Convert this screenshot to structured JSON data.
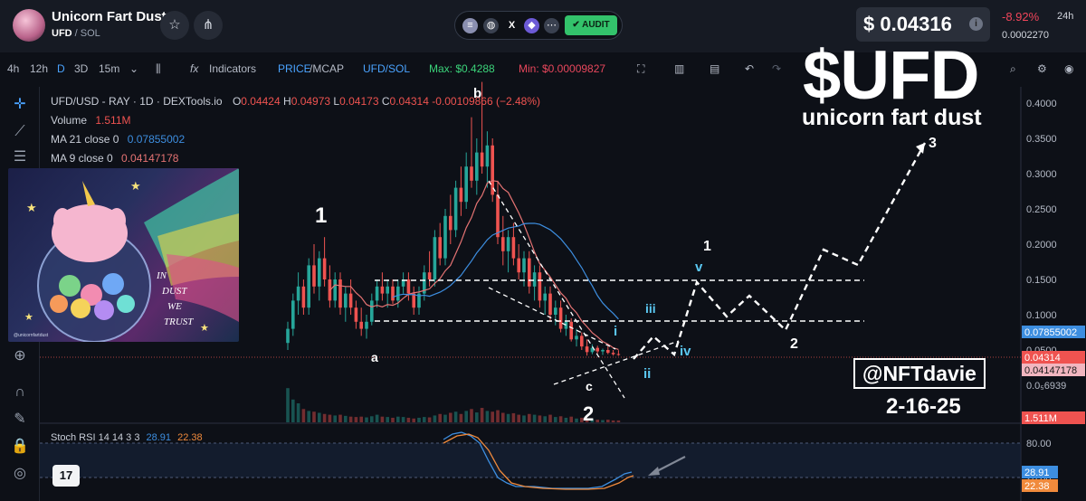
{
  "header": {
    "coin_name": "Unicorn Fart Dust",
    "coin_symbol": "UFD",
    "coin_quote": "/ SOL",
    "star_icon": "star-icon",
    "share_icon": "share-icon",
    "audit_label": "AUDIT",
    "price": "$ 0.04316",
    "change": "-8.92%",
    "change_period": "24h",
    "price_sol": "0.0002270"
  },
  "toolbar": {
    "timeframes": [
      "4h",
      "12h",
      "D",
      "3D",
      "15m"
    ],
    "active_timeframe": "D",
    "indicators_label": "Indicators",
    "price_label": "PRICE",
    "mcap_label": "/MCAP",
    "pair_label": "UFD/SOL",
    "max_label": "Max: $0.4288",
    "min_label": "Min: $0.00009827"
  },
  "legend": {
    "title": "UFD/USD - RAY · 1D · DEXTools.io",
    "o": "0.04424",
    "h": "0.04973",
    "l": "0.04173",
    "c": "0.04314",
    "chg": "-0.00109866 (−2.48%)",
    "volume_label": "Volume",
    "volume_value": "1.511M",
    "ma21_label": "MA 21 close 0",
    "ma21_value": "0.07855002",
    "ma9_label": "MA 9 close 0",
    "ma9_value": "0.04147178"
  },
  "rsi_legend": {
    "label": "Stoch RSI 14 14 3 3",
    "k": "28.91",
    "d": "22.38"
  },
  "overlay": {
    "ticker": "$UFD",
    "subtitle": "unicorn fart dust",
    "handle": "@NFTdavie",
    "date": "2-16-25",
    "art_text": [
      "IN",
      "DUST",
      "WE",
      "TRUST"
    ],
    "art_credit": "@unicornfartdust"
  },
  "colors": {
    "up": "#26a69a",
    "down": "#ef5350",
    "ma21": "#3d8ee0",
    "ma9": "#e57373",
    "rsi_k": "#3d8ee0",
    "rsi_d": "#f08a3c",
    "accent": "#4aa3ff"
  },
  "chart_data": {
    "type": "candlestick",
    "pair": "UFD/USD",
    "price_axis_ticks": [
      "0.4000",
      "0.3500",
      "0.3000",
      "0.2500",
      "0.2000",
      "0.1500",
      "0.1000",
      "0.0500",
      "0.0₅6939"
    ],
    "price_labels": [
      {
        "value": "0.07855002",
        "kind": "ma21"
      },
      {
        "value": "0.04314",
        "kind": "price"
      },
      {
        "value": "0.04147178",
        "kind": "ma9"
      },
      {
        "value": "1.511M",
        "kind": "volume"
      }
    ],
    "rsi_axis_ticks": [
      "80.00",
      "20.00"
    ],
    "rsi_labels": [
      {
        "value": "28.91",
        "kind": "k"
      },
      {
        "value": "22.38",
        "kind": "d"
      }
    ],
    "candles": [
      [
        0.06,
        0.09,
        0.05,
        0.08
      ],
      [
        0.08,
        0.13,
        0.07,
        0.12
      ],
      [
        0.12,
        0.16,
        0.1,
        0.14
      ],
      [
        0.14,
        0.15,
        0.1,
        0.11
      ],
      [
        0.11,
        0.18,
        0.1,
        0.17
      ],
      [
        0.17,
        0.2,
        0.13,
        0.14
      ],
      [
        0.14,
        0.19,
        0.12,
        0.18
      ],
      [
        0.18,
        0.21,
        0.14,
        0.15
      ],
      [
        0.15,
        0.17,
        0.11,
        0.12
      ],
      [
        0.12,
        0.16,
        0.11,
        0.15
      ],
      [
        0.15,
        0.16,
        0.1,
        0.11
      ],
      [
        0.11,
        0.14,
        0.09,
        0.13
      ],
      [
        0.13,
        0.15,
        0.1,
        0.11
      ],
      [
        0.11,
        0.12,
        0.08,
        0.09
      ],
      [
        0.09,
        0.11,
        0.07,
        0.08
      ],
      [
        0.08,
        0.1,
        0.066,
        0.09
      ],
      [
        0.09,
        0.13,
        0.085,
        0.12
      ],
      [
        0.12,
        0.15,
        0.11,
        0.14
      ],
      [
        0.14,
        0.16,
        0.12,
        0.13
      ],
      [
        0.13,
        0.15,
        0.11,
        0.14
      ],
      [
        0.14,
        0.15,
        0.115,
        0.12
      ],
      [
        0.12,
        0.15,
        0.11,
        0.14
      ],
      [
        0.14,
        0.16,
        0.13,
        0.15
      ],
      [
        0.15,
        0.16,
        0.12,
        0.13
      ],
      [
        0.13,
        0.14,
        0.1,
        0.11
      ],
      [
        0.11,
        0.14,
        0.1,
        0.13
      ],
      [
        0.13,
        0.17,
        0.12,
        0.16
      ],
      [
        0.16,
        0.19,
        0.14,
        0.15
      ],
      [
        0.15,
        0.22,
        0.14,
        0.21
      ],
      [
        0.21,
        0.23,
        0.17,
        0.18
      ],
      [
        0.18,
        0.25,
        0.17,
        0.24
      ],
      [
        0.24,
        0.27,
        0.2,
        0.22
      ],
      [
        0.22,
        0.29,
        0.21,
        0.28
      ],
      [
        0.28,
        0.31,
        0.24,
        0.26
      ],
      [
        0.26,
        0.33,
        0.25,
        0.31
      ],
      [
        0.31,
        0.38,
        0.28,
        0.29
      ],
      [
        0.29,
        0.35,
        0.27,
        0.33
      ],
      [
        0.33,
        0.43,
        0.3,
        0.31
      ],
      [
        0.31,
        0.36,
        0.28,
        0.34
      ],
      [
        0.34,
        0.35,
        0.26,
        0.27
      ],
      [
        0.27,
        0.29,
        0.2,
        0.21
      ],
      [
        0.21,
        0.24,
        0.17,
        0.19
      ],
      [
        0.19,
        0.22,
        0.16,
        0.21
      ],
      [
        0.21,
        0.23,
        0.17,
        0.18
      ],
      [
        0.18,
        0.2,
        0.15,
        0.16
      ],
      [
        0.16,
        0.19,
        0.14,
        0.18
      ],
      [
        0.18,
        0.19,
        0.13,
        0.14
      ],
      [
        0.14,
        0.17,
        0.12,
        0.16
      ],
      [
        0.16,
        0.17,
        0.11,
        0.12
      ],
      [
        0.12,
        0.14,
        0.1,
        0.13
      ],
      [
        0.13,
        0.14,
        0.09,
        0.1
      ],
      [
        0.1,
        0.12,
        0.085,
        0.11
      ],
      [
        0.11,
        0.12,
        0.075,
        0.08
      ],
      [
        0.08,
        0.1,
        0.07,
        0.09
      ],
      [
        0.09,
        0.095,
        0.062,
        0.065
      ],
      [
        0.065,
        0.08,
        0.055,
        0.07
      ],
      [
        0.07,
        0.075,
        0.05,
        0.055
      ],
      [
        0.055,
        0.065,
        0.042,
        0.047
      ],
      [
        0.047,
        0.058,
        0.044,
        0.053
      ],
      [
        0.053,
        0.056,
        0.045,
        0.048
      ],
      [
        0.048,
        0.052,
        0.043,
        0.05
      ],
      [
        0.05,
        0.055,
        0.044,
        0.046
      ],
      [
        0.046,
        0.05,
        0.042,
        0.044
      ],
      [
        0.04424,
        0.04973,
        0.04173,
        0.04314
      ]
    ],
    "volume": [
      0.9,
      0.6,
      0.5,
      0.35,
      0.3,
      0.28,
      0.25,
      0.22,
      0.2,
      0.18,
      0.2,
      0.17,
      0.15,
      0.14,
      0.15,
      0.13,
      0.16,
      0.2,
      0.15,
      0.14,
      0.12,
      0.15,
      0.14,
      0.12,
      0.1,
      0.12,
      0.14,
      0.13,
      0.18,
      0.22,
      0.2,
      0.25,
      0.28,
      0.22,
      0.3,
      0.35,
      0.26,
      0.38,
      0.3,
      0.28,
      0.32,
      0.25,
      0.22,
      0.24,
      0.2,
      0.18,
      0.22,
      0.2,
      0.18,
      0.16,
      0.2,
      0.14,
      0.16,
      0.12,
      0.15,
      0.1,
      0.12,
      0.09,
      0.08,
      0.07,
      0.06,
      0.07,
      0.05,
      0.05
    ],
    "annotations": {
      "wave_labels": [
        "1",
        "a",
        "b",
        "c",
        "2",
        "i",
        "ii",
        "iii",
        "iv",
        "v",
        "1",
        "2",
        "3"
      ],
      "resistance_levels": [
        0.15,
        0.095
      ]
    }
  }
}
